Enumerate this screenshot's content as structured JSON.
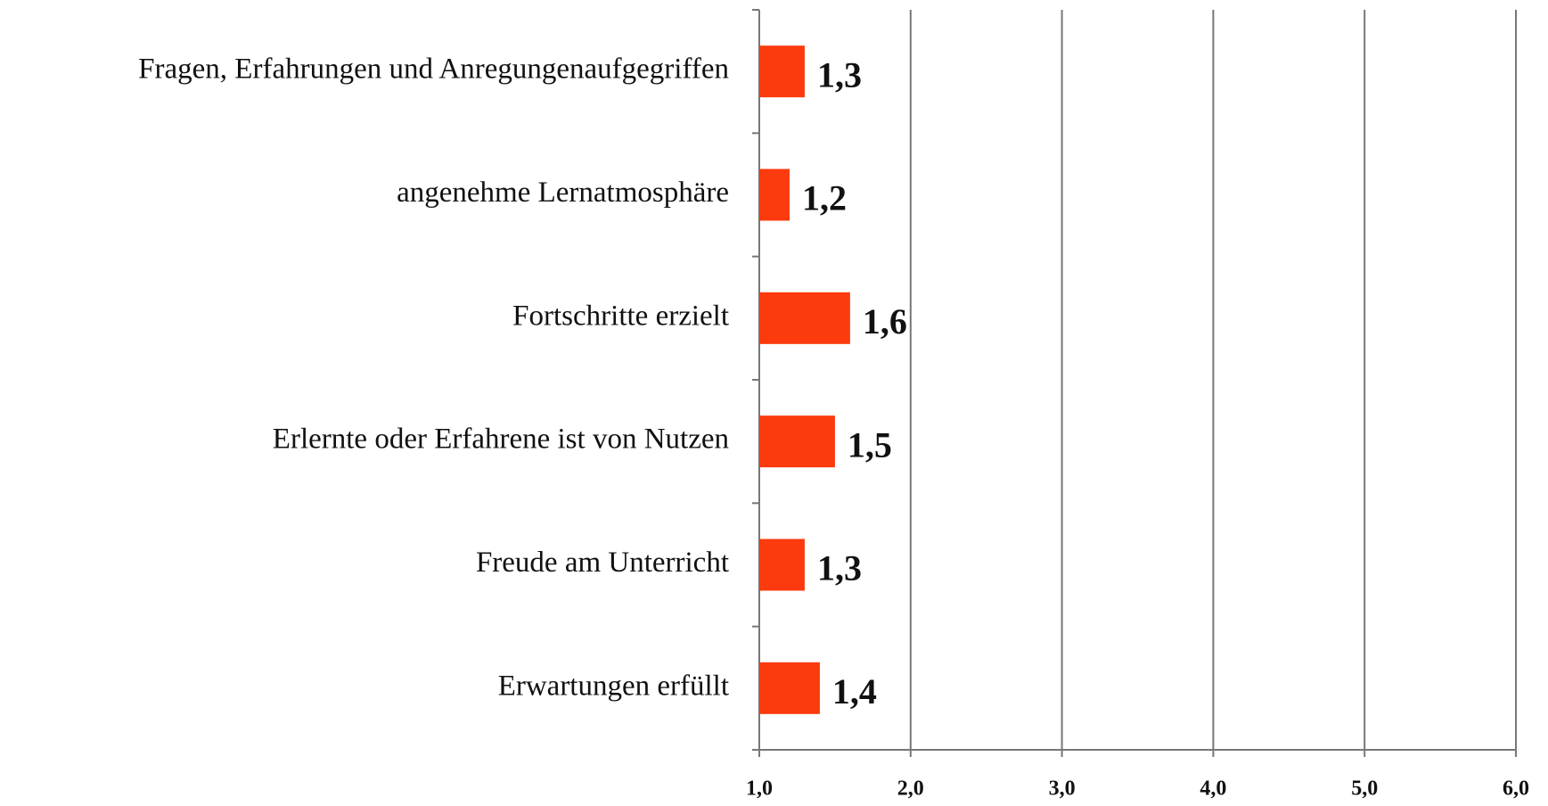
{
  "chart_data": {
    "type": "bar",
    "orientation": "horizontal",
    "categories": [
      "Fragen, Erfahrungen und Anregungenaufgegriffen",
      "angenehme Lernatmosphäre",
      "Fortschritte erzielt",
      "Erlernte oder Erfahrene ist von Nutzen",
      "Freude am Unterricht",
      "Erwartungen erfüllt"
    ],
    "values": [
      1.3,
      1.2,
      1.6,
      1.5,
      1.3,
      1.4
    ],
    "value_labels": [
      "1,3",
      "1,2",
      "1,6",
      "1,5",
      "1,3",
      "1,4"
    ],
    "color": "#fb3a0e",
    "xlim": [
      1,
      6
    ],
    "xticks": [
      {
        "value": 1,
        "label": "1,0"
      },
      {
        "value": 2,
        "label": "2,0"
      },
      {
        "value": 3,
        "label": "3,0"
      },
      {
        "value": 4,
        "label": "4,0"
      },
      {
        "value": 5,
        "label": "5,0"
      },
      {
        "value": 6,
        "label": "6,0"
      }
    ],
    "grid": true
  }
}
